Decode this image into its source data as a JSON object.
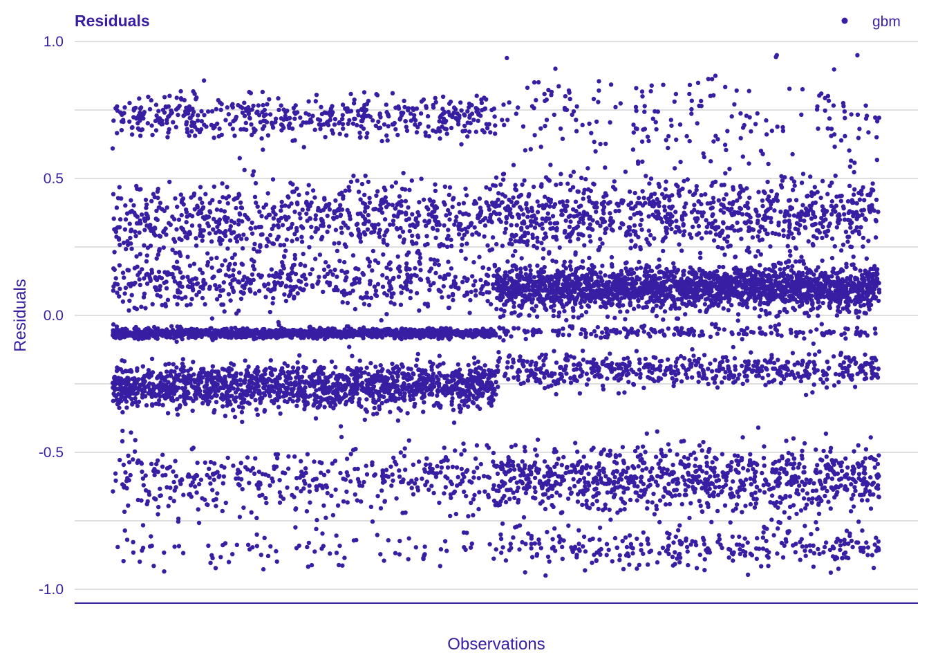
{
  "chart_data": {
    "type": "scatter",
    "title": "Residuals",
    "xlabel": "Observations",
    "ylabel": "Residuals",
    "ylim": [
      -1.05,
      1.0
    ],
    "yticks": [
      -1.0,
      -0.5,
      0.0,
      0.5,
      1.0
    ],
    "ytick_labels": [
      "-1.0",
      "-0.5",
      "0.0",
      "0.5",
      "1.0"
    ],
    "xticks": [],
    "grid": true,
    "legend_position": "top-right",
    "n_observations": 10000,
    "series": [
      {
        "name": "gbm",
        "color": "#371ea3",
        "first_half_bands": [
          {
            "center": 0.72,
            "spread": 0.04,
            "weight": 0.1
          },
          {
            "center": 0.35,
            "spread": 0.07,
            "weight": 0.14
          },
          {
            "center": 0.12,
            "spread": 0.05,
            "weight": 0.1
          },
          {
            "center": -0.065,
            "spread": 0.008,
            "weight": 0.26
          },
          {
            "center": -0.26,
            "spread": 0.04,
            "weight": 0.3
          },
          {
            "center": -0.6,
            "spread": 0.06,
            "weight": 0.08
          },
          {
            "center": -0.85,
            "spread": 0.04,
            "weight": 0.02
          }
        ],
        "second_half_bands": [
          {
            "center": 0.74,
            "spread": 0.08,
            "weight": 0.04
          },
          {
            "center": 0.37,
            "spread": 0.07,
            "weight": 0.18
          },
          {
            "center": 0.1,
            "spread": 0.04,
            "weight": 0.4
          },
          {
            "center": -0.06,
            "spread": 0.01,
            "weight": 0.04
          },
          {
            "center": -0.2,
            "spread": 0.03,
            "weight": 0.1
          },
          {
            "center": -0.6,
            "spread": 0.06,
            "weight": 0.18
          },
          {
            "center": -0.85,
            "spread": 0.04,
            "weight": 0.06
          }
        ]
      }
    ]
  }
}
